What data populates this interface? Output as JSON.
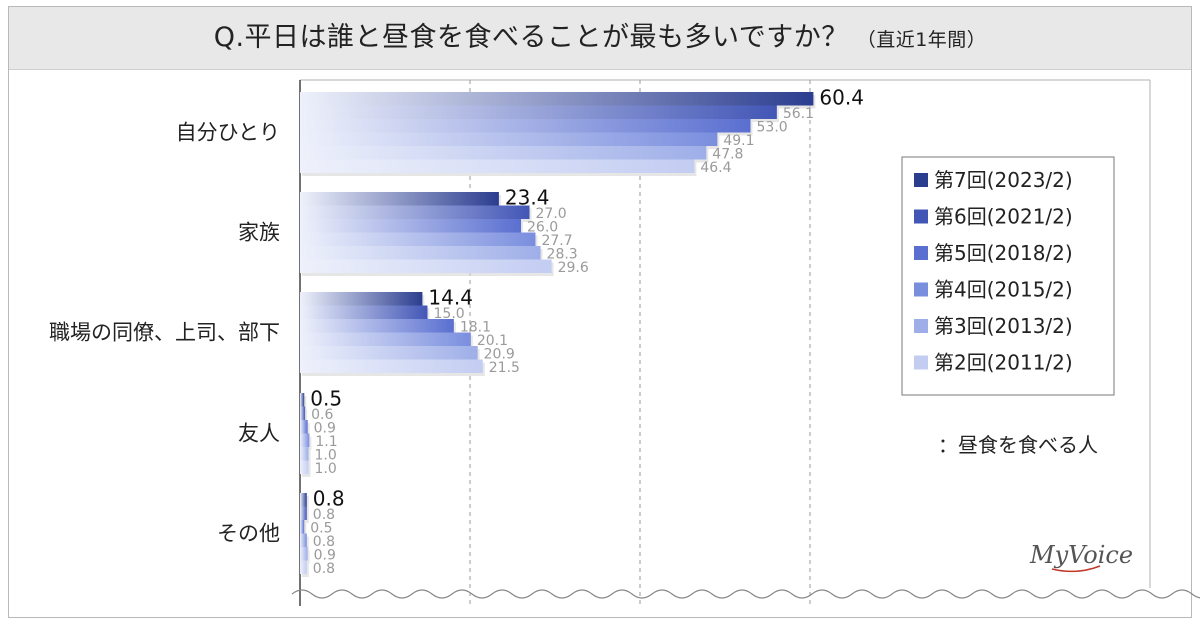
{
  "title": {
    "main": "Q.平日は誰と昼食を食べることが最も多いですか？",
    "sub": "（直近1年間）"
  },
  "note": "：昼食を食べる人",
  "logo": "MyVoice",
  "chart_data": {
    "type": "bar",
    "orientation": "horizontal",
    "categories": [
      "自分ひとり",
      "家族",
      "職場の同僚、上司、部下",
      "友人",
      "その他"
    ],
    "xlim": [
      0,
      80
    ],
    "grid": "vertical dashed",
    "legend_position": "right",
    "series": [
      {
        "name": "第7回(2023/2)",
        "color": "#2b3d8f",
        "values": [
          60.4,
          23.4,
          14.4,
          0.5,
          0.8
        ]
      },
      {
        "name": "第6回(2021/2)",
        "color": "#4256b6",
        "values": [
          56.1,
          27.0,
          15.0,
          0.6,
          0.8
        ]
      },
      {
        "name": "第5回(2018/2)",
        "color": "#5a6fd0",
        "values": [
          53.0,
          26.0,
          18.1,
          0.9,
          0.5
        ]
      },
      {
        "name": "第4回(2015/2)",
        "color": "#7a8ede",
        "values": [
          49.1,
          27.7,
          20.1,
          1.1,
          0.8
        ]
      },
      {
        "name": "第3回(2013/2)",
        "color": "#9eaee8",
        "values": [
          47.8,
          28.3,
          20.9,
          1.0,
          0.9
        ]
      },
      {
        "name": "第2回(2011/2)",
        "color": "#c3cdf2",
        "values": [
          46.4,
          29.6,
          21.5,
          1.0,
          0.8
        ]
      }
    ]
  }
}
